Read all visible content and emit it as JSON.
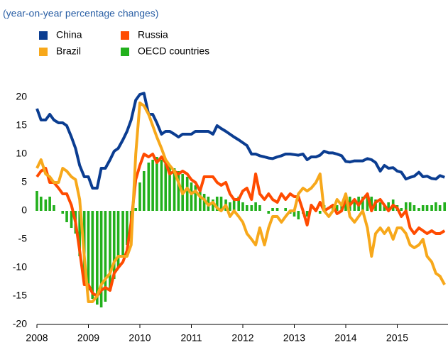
{
  "chart_data": {
    "type": "line",
    "subtitle": "(year-on-year percentage changes)",
    "x": [
      2008,
      2008.08,
      2008.17,
      2008.25,
      2008.33,
      2008.42,
      2008.5,
      2008.58,
      2008.67,
      2008.75,
      2008.83,
      2008.92,
      2009,
      2009.08,
      2009.17,
      2009.25,
      2009.33,
      2009.42,
      2009.5,
      2009.58,
      2009.67,
      2009.75,
      2009.83,
      2009.92,
      2010,
      2010.08,
      2010.17,
      2010.25,
      2010.33,
      2010.42,
      2010.5,
      2010.58,
      2010.67,
      2010.75,
      2010.83,
      2010.92,
      2011,
      2011.08,
      2011.17,
      2011.25,
      2011.33,
      2011.42,
      2011.5,
      2011.58,
      2011.67,
      2011.75,
      2011.83,
      2011.92,
      2012,
      2012.08,
      2012.17,
      2012.25,
      2012.33,
      2012.42,
      2012.5,
      2012.58,
      2012.67,
      2012.75,
      2012.83,
      2012.92,
      2013,
      2013.08,
      2013.17,
      2013.25,
      2013.33,
      2013.42,
      2013.5,
      2013.58,
      2013.67,
      2013.75,
      2013.83,
      2013.92,
      2014,
      2014.08,
      2014.17,
      2014.25,
      2014.33,
      2014.42,
      2014.5,
      2014.58,
      2014.67,
      2014.75,
      2014.83,
      2014.92,
      2015,
      2015.08,
      2015.17,
      2015.25,
      2015.33,
      2015.42,
      2015.5,
      2015.58,
      2015.67,
      2015.75,
      2015.83,
      2015.92
    ],
    "series": [
      {
        "name": "China",
        "color": "#0b3d91",
        "type": "line",
        "values": [
          18,
          16,
          16,
          17,
          16,
          15.5,
          15.5,
          15,
          13,
          11,
          8,
          6,
          6,
          4,
          4,
          7.5,
          7.5,
          9,
          10.5,
          11,
          12.5,
          14,
          16,
          19.5,
          20.5,
          20.7,
          17,
          17,
          15.5,
          13.5,
          14,
          14,
          13.5,
          13,
          13.5,
          13.5,
          13.5,
          14,
          14,
          14,
          14,
          13.5,
          15,
          14.5,
          14,
          13.5,
          13,
          12.5,
          12,
          11.5,
          10,
          10,
          9.7,
          9.5,
          9.3,
          9.2,
          9.5,
          9.7,
          10,
          10,
          9.9,
          9.8,
          10,
          9,
          9.5,
          9.5,
          9.8,
          10.5,
          10.2,
          10.2,
          10,
          9.7,
          8.7,
          8.6,
          8.8,
          8.8,
          8.8,
          9.2,
          9,
          8.5,
          7,
          8,
          7.5,
          7.6,
          7,
          6.8,
          5.6,
          5.9,
          6.1,
          6.8,
          6,
          6.1,
          5.7,
          5.6,
          6.2,
          5.9
        ]
      },
      {
        "name": "Russia",
        "color": "#ff4b00",
        "type": "line",
        "values": [
          6,
          7,
          7.5,
          5,
          5,
          4,
          3,
          3,
          1,
          -2,
          -7,
          -13,
          -13,
          -14.5,
          -15,
          -14,
          -13.5,
          -14,
          -11,
          -10,
          -9,
          -7,
          -2,
          5.5,
          8,
          10,
          9.5,
          10,
          8.5,
          9.5,
          8.5,
          6.5,
          7,
          6.5,
          7,
          6.5,
          5.5,
          5,
          3.5,
          6,
          6,
          6,
          5,
          4.5,
          5,
          3,
          2,
          2,
          3.5,
          4,
          2,
          6.5,
          3,
          2,
          3,
          2,
          1.5,
          3,
          2,
          3,
          2.5,
          2.5,
          0,
          -2.5,
          1,
          0,
          1.5,
          0,
          0.5,
          1,
          -0.5,
          0,
          2,
          1,
          2,
          1,
          2,
          3,
          0,
          1.5,
          2,
          1,
          0,
          1,
          0.5,
          -1,
          0,
          -3,
          -4,
          -3,
          -3.5,
          -4,
          -3.5,
          -4,
          -4,
          -3.5
        ]
      },
      {
        "name": "Brazil",
        "color": "#f7a81b",
        "type": "line",
        "values": [
          7.5,
          9,
          6.5,
          6,
          5,
          5,
          7.5,
          7,
          6,
          5.5,
          2,
          -8,
          -16,
          -16,
          -15,
          -13,
          -12,
          -11,
          -9,
          -8,
          -8,
          -8,
          -6,
          10,
          19,
          18.5,
          17,
          15,
          13,
          11,
          9,
          8,
          7,
          5,
          3,
          4,
          3,
          3.5,
          2.5,
          2,
          1,
          1.5,
          0.5,
          0,
          1,
          -1,
          0,
          -1,
          -2,
          -4,
          -5,
          -6,
          -3,
          -6,
          -3,
          -1,
          -1,
          -2,
          -1,
          0,
          0,
          3,
          4,
          3.5,
          4,
          5,
          6.5,
          0,
          -1,
          0,
          2,
          1,
          3,
          -1,
          -2,
          -1,
          0,
          -3,
          -8,
          -4,
          -3,
          -4,
          -3,
          -5,
          -3,
          -3,
          -4,
          -6,
          -6.5,
          -6,
          -5,
          -8,
          -9,
          -11,
          -11.5,
          -13
        ]
      },
      {
        "name": "OECD countries",
        "color": "#22b01c",
        "type": "bar",
        "values": [
          3.5,
          2.5,
          2,
          2.5,
          1,
          0,
          -0.5,
          -2,
          -3,
          -4,
          -8,
          -12,
          -14,
          -15.5,
          -16.5,
          -17,
          -16,
          -14,
          -12,
          -10,
          -8,
          -6,
          -3,
          0.5,
          5,
          7,
          8.5,
          9,
          9.5,
          9,
          8.5,
          8,
          7.5,
          7,
          6.5,
          6,
          5,
          4.5,
          4,
          3,
          2.5,
          2,
          2.5,
          2.5,
          2,
          1.5,
          2,
          2.5,
          1.5,
          1,
          1,
          1.5,
          1,
          0,
          -0.5,
          0.5,
          0.5,
          0,
          0.5,
          -0.5,
          -1,
          -1.5,
          -0.5,
          -1,
          0,
          0,
          -0.5,
          1,
          0,
          1,
          1,
          1.5,
          3,
          2.5,
          2,
          2.5,
          2.5,
          3,
          2.5,
          2,
          1.5,
          1,
          1.5,
          2,
          1,
          0.5,
          1.5,
          1.5,
          1,
          0.5,
          1,
          1,
          1,
          1.5,
          1,
          1.5
        ]
      }
    ],
    "xlim": [
      2008,
      2016
    ],
    "xticks": [
      2008,
      2009,
      2010,
      2011,
      2012,
      2013,
      2014,
      2015
    ],
    "ylim": [
      -20,
      20
    ],
    "yticks": [
      -20,
      -15,
      -10,
      -5,
      0,
      5,
      10,
      15,
      20
    ]
  }
}
